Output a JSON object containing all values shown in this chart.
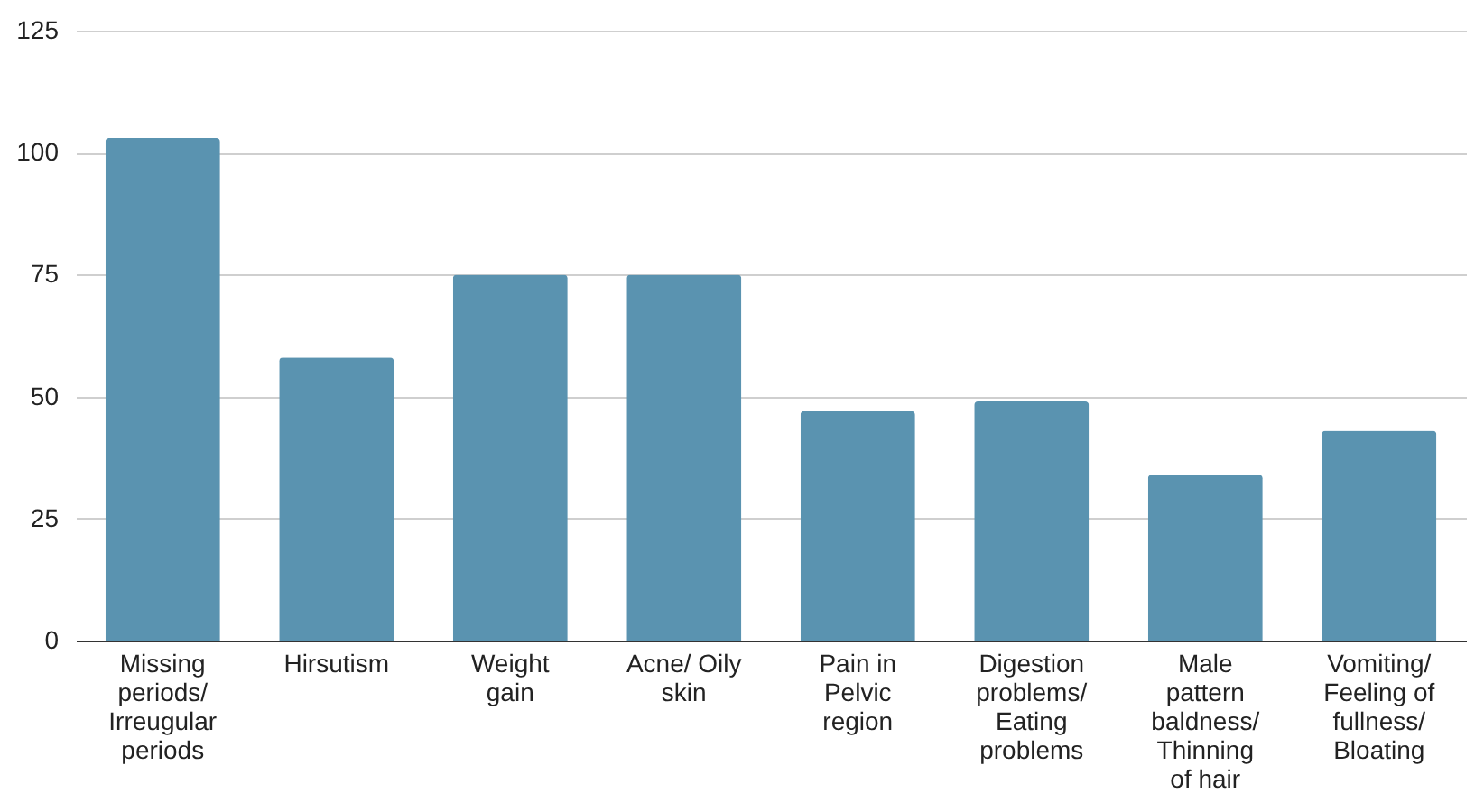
{
  "chart_data": {
    "type": "bar",
    "categories": [
      "Missing periods/ Irreugular periods",
      "Hirsutism",
      "Weight gain",
      "Acne/ Oily skin",
      "Pain in Pelvic region",
      "Digestion problems/ Eating problems",
      "Male pattern baldness/ Thinning of hair",
      "Vomiting/ Feeling of fullness/ Bloating"
    ],
    "values": [
      103,
      58,
      75,
      75,
      47,
      49,
      34,
      43
    ],
    "color": "#5a93b0",
    "ylim": [
      0,
      125
    ],
    "yticks": [
      0,
      25,
      50,
      75,
      100,
      125
    ],
    "grid": "y"
  }
}
